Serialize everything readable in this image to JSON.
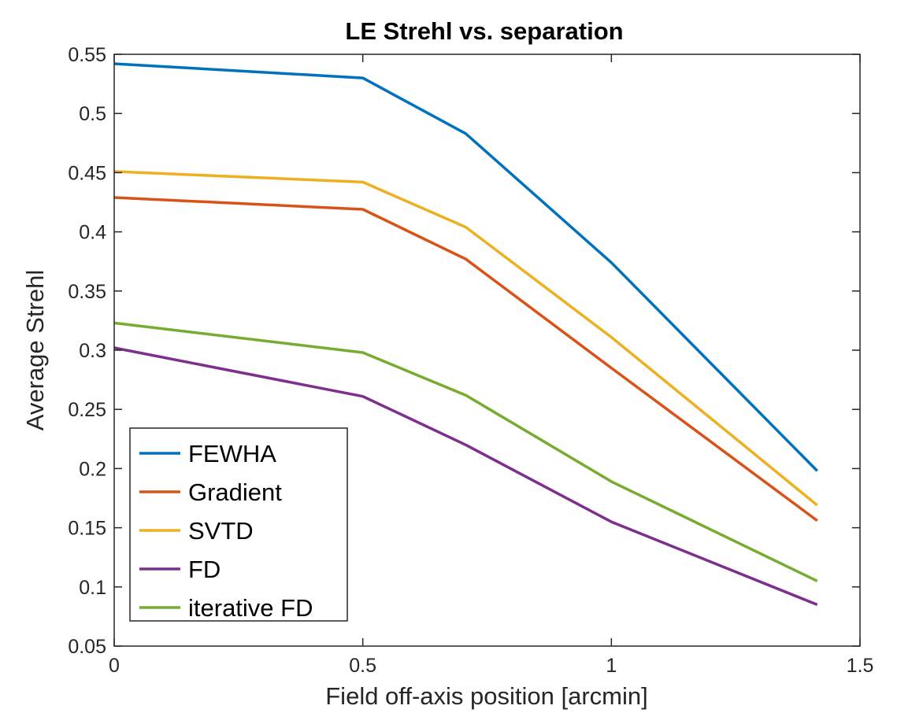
{
  "chart_data": {
    "type": "line",
    "title": "LE Strehl vs. separation",
    "xlabel": "Field off-axis position [arcmin]",
    "ylabel": "Average Strehl",
    "xlim": [
      0,
      1.5
    ],
    "ylim": [
      0.05,
      0.55
    ],
    "xticks": [
      0,
      0.5,
      1,
      1.5
    ],
    "xtick_labels": [
      "0",
      "0.5",
      "1",
      "1.5"
    ],
    "yticks": [
      0.05,
      0.1,
      0.15,
      0.2,
      0.25,
      0.3,
      0.35,
      0.4,
      0.45,
      0.5,
      0.55
    ],
    "ytick_labels": [
      "0.05",
      "0.1",
      "0.15",
      "0.2",
      "0.25",
      "0.3",
      "0.35",
      "0.4",
      "0.45",
      "0.5",
      "0.55"
    ],
    "grid": false,
    "legend_position": "bottom-left",
    "x": [
      0,
      0.5,
      0.707,
      1,
      1.414
    ],
    "series": [
      {
        "name": "FEWHA",
        "color": "#0072BD",
        "values": [
          0.542,
          0.53,
          0.483,
          0.374,
          0.198
        ]
      },
      {
        "name": "Gradient",
        "color": "#D95319",
        "values": [
          0.429,
          0.419,
          0.377,
          0.285,
          0.156
        ]
      },
      {
        "name": "SVTD",
        "color": "#EDB120",
        "values": [
          0.451,
          0.442,
          0.404,
          0.311,
          0.169
        ]
      },
      {
        "name": "FD",
        "color": "#7E2F8E",
        "values": [
          0.302,
          0.261,
          0.22,
          0.155,
          0.085
        ]
      },
      {
        "name": "iterative FD",
        "color": "#77AC30",
        "values": [
          0.323,
          0.298,
          0.262,
          0.189,
          0.105
        ]
      }
    ]
  }
}
